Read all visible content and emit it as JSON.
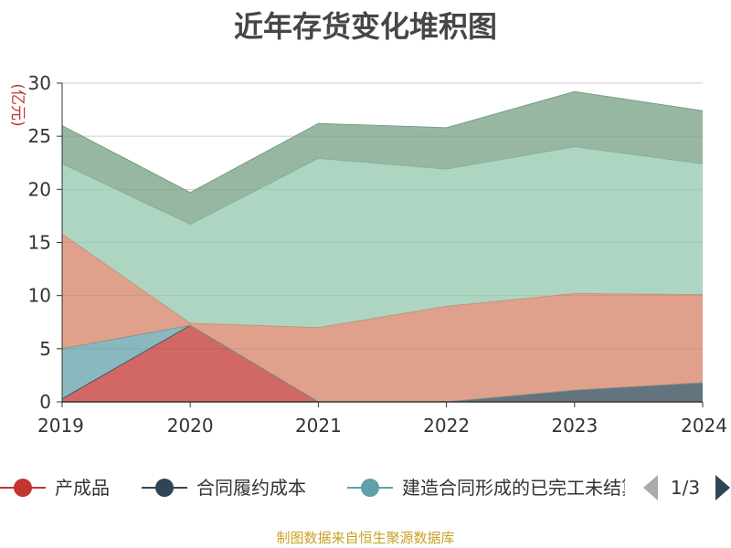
{
  "chart_data": {
    "type": "area",
    "title": "近年存货变化堆积图",
    "ylabel": "(亿元)",
    "x": [
      "2019",
      "2020",
      "2021",
      "2022",
      "2023",
      "2024"
    ],
    "ylim": [
      0,
      30
    ],
    "yticks": [
      0,
      5,
      10,
      15,
      20,
      25,
      30
    ],
    "grid": true,
    "stacked": true,
    "series": [
      {
        "name": "产成品",
        "color": "#c23531",
        "values": [
          0.3,
          7.2,
          0.0,
          0.0,
          0.0,
          0.0
        ]
      },
      {
        "name": "合同履约成本",
        "color": "#2f4554",
        "values": [
          0.0,
          0.0,
          0.0,
          0.0,
          1.1,
          1.8
        ]
      },
      {
        "name": "建造合同形成的已完工未结算资产",
        "color": "#61a0a8",
        "values": [
          4.7,
          0.0,
          0.0,
          0.0,
          0.0,
          0.0
        ]
      },
      {
        "name": "",
        "color": "#d48265",
        "values": [
          10.8,
          0.2,
          7.0,
          9.0,
          9.1,
          8.3
        ]
      },
      {
        "name": "",
        "color": "#91c7ae",
        "values": [
          6.6,
          9.3,
          15.9,
          12.9,
          13.8,
          12.3
        ]
      },
      {
        "name": "",
        "color": "#749f83",
        "values": [
          3.6,
          3.0,
          3.3,
          3.9,
          5.2,
          5.0
        ]
      }
    ]
  },
  "legend": {
    "items": [
      {
        "label": "产成品",
        "color": "#c23531"
      },
      {
        "label": "合同履约成本",
        "color": "#2f4554"
      },
      {
        "label": "建造合同形成的已完工未结算资产",
        "color": "#61a0a8"
      }
    ],
    "page_indicator": "1/3"
  },
  "footer": {
    "source": "制图数据来自恒生聚源数据库"
  }
}
